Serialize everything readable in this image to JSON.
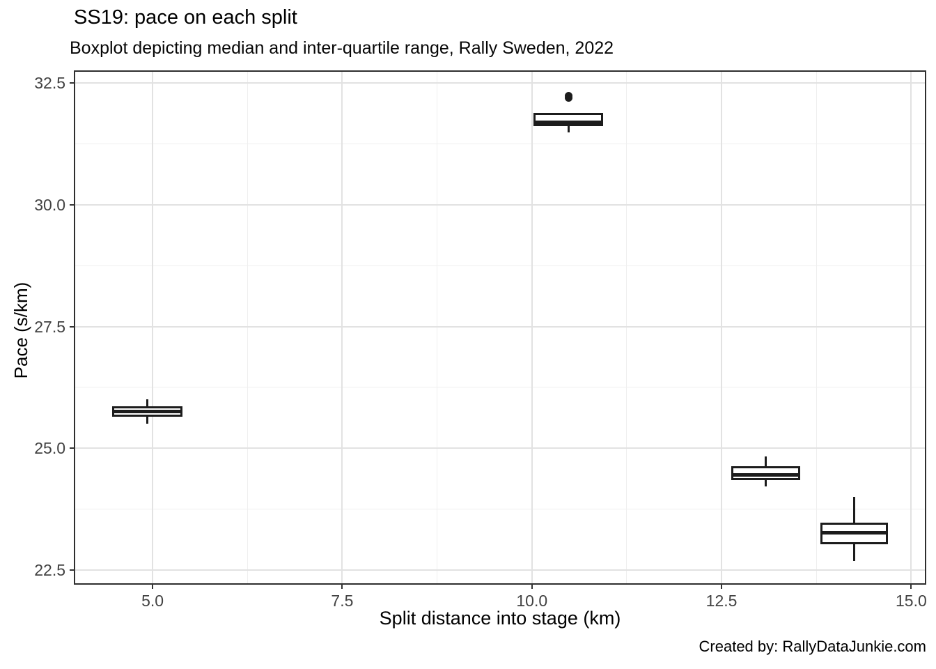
{
  "header": {
    "title": "SS19: pace on each split",
    "subtitle": "Boxplot depicting median and inter-quartile range, Rally Sweden, 2022"
  },
  "caption": "Created by: RallyDataJunkie.com",
  "chart_data": {
    "type": "boxplot",
    "title": "SS19: pace on each split",
    "subtitle": "Boxplot depicting median and inter-quartile range, Rally Sweden, 2022",
    "xlabel": "Split distance into stage (km)",
    "ylabel": "Pace (s/km)",
    "caption": "Created by: RallyDataJunkie.com",
    "xlim": [
      3.98,
      15.18
    ],
    "ylim": [
      22.23,
      32.73
    ],
    "x_tick_values": [
      5.0,
      7.5,
      10.0,
      12.5,
      15.0
    ],
    "x_tick_labels": [
      "5.0",
      "7.5",
      "10.0",
      "12.5",
      "15.0"
    ],
    "y_tick_values": [
      22.5,
      25.0,
      27.5,
      30.0,
      32.5
    ],
    "y_tick_labels": [
      "22.5",
      "25.0",
      "27.5",
      "30.0",
      "32.5"
    ],
    "x_minor_gridlines": [
      6.25,
      8.75,
      11.25,
      13.75
    ],
    "y_minor_gridlines": [
      23.75,
      26.25,
      28.75,
      31.25
    ],
    "grid": true,
    "legend": "none",
    "boxes": [
      {
        "x": 4.93,
        "width": 0.92,
        "q1": 25.65,
        "median": 25.75,
        "q3": 25.86,
        "whisker_low": 25.51,
        "whisker_high": 26.01,
        "outliers": []
      },
      {
        "x": 10.48,
        "width": 0.91,
        "q1": 31.61,
        "median": 31.7,
        "q3": 31.88,
        "whisker_low": 31.49,
        "whisker_high": 31.88,
        "outliers": [
          32.2,
          32.24
        ]
      },
      {
        "x": 13.08,
        "width": 0.91,
        "q1": 24.35,
        "median": 24.45,
        "q3": 24.63,
        "whisker_low": 24.22,
        "whisker_high": 24.84,
        "outliers": []
      },
      {
        "x": 14.25,
        "width": 0.89,
        "q1": 23.03,
        "median": 23.27,
        "q3": 23.48,
        "whisker_low": 22.69,
        "whisker_high": 24.0,
        "outliers": []
      }
    ],
    "colors": {
      "box_stroke": "#1c1c1c",
      "box_fill": "#ffffff",
      "grid_major": "#e2e2e2",
      "grid_minor": "#efefef",
      "panel_border": "#2e2e2e",
      "tick_text": "#424242",
      "background": "#ffffff"
    }
  }
}
